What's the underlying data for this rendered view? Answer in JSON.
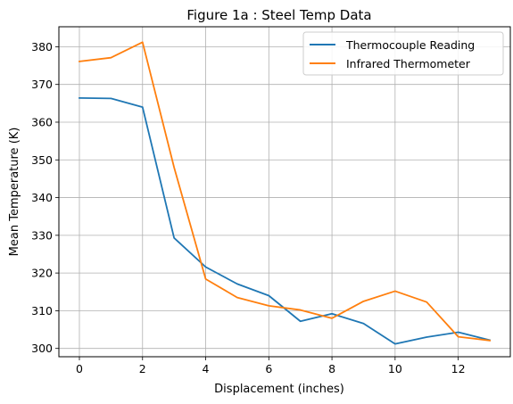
{
  "chart_data": {
    "type": "line",
    "title": "Figure 1a : Steel Temp Data",
    "xlabel": "Displacement (inches)",
    "ylabel": "Mean Temperature (K)",
    "xlim": [
      -0.65,
      13.65
    ],
    "ylim": [
      297.8,
      385.3
    ],
    "xticks": [
      0,
      2,
      4,
      6,
      8,
      10,
      12
    ],
    "yticks": [
      300,
      310,
      320,
      330,
      340,
      350,
      360,
      370,
      380
    ],
    "grid": true,
    "legend_position": "top-right",
    "x": [
      0,
      1,
      2,
      3,
      4,
      5,
      6,
      7,
      8,
      9,
      10,
      11,
      12,
      13
    ],
    "series": [
      {
        "name": "Thermocouple Reading",
        "color": "#1f77b4",
        "values": [
          366.4,
          366.3,
          364.0,
          329.3,
          321.6,
          317.1,
          314.0,
          307.2,
          309.2,
          306.6,
          301.2,
          303.0,
          304.3,
          302.2
        ]
      },
      {
        "name": "Infrared Thermometer",
        "color": "#ff7f0e",
        "values": [
          376.1,
          377.1,
          381.2,
          348.0,
          318.4,
          313.5,
          311.3,
          310.2,
          308.0,
          312.5,
          315.2,
          312.3,
          303.1,
          302.1
        ]
      }
    ]
  }
}
